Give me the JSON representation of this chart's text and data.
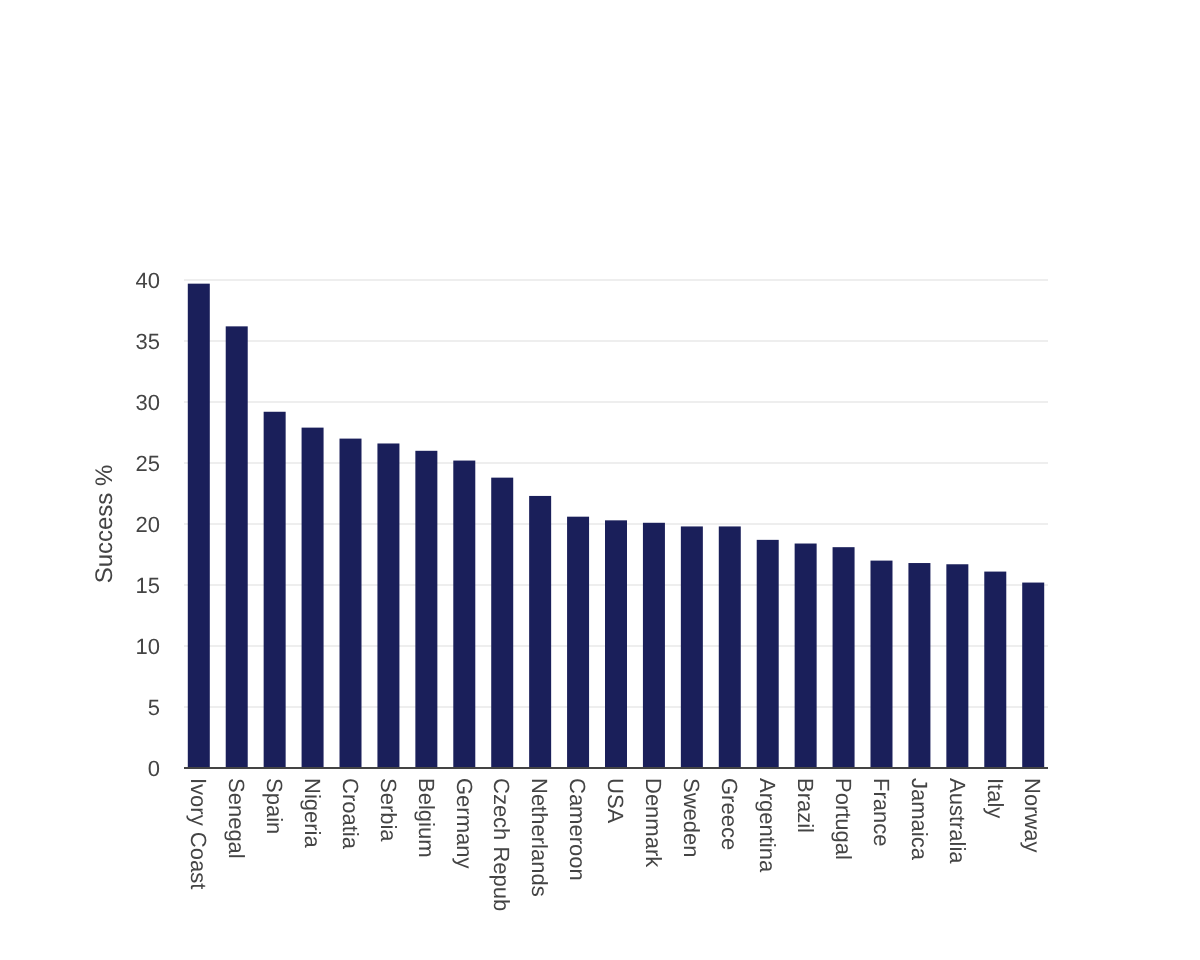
{
  "chart_data": {
    "type": "bar",
    "ylabel": "Success %",
    "categories": [
      "Ivory Coast",
      "Senegal",
      "Spain",
      "Nigeria",
      "Croatia",
      "Serbia",
      "Belgium",
      "Germany",
      "Czech Repub",
      "Netherlands",
      "Cameroon",
      "USA",
      "Denmark",
      "Sweden",
      "Greece",
      "Argentina",
      "Brazil",
      "Portugal",
      "France",
      "Jamaica",
      "Australia",
      "Italy",
      "Norway"
    ],
    "values": [
      39.7,
      36.2,
      29.2,
      27.9,
      27.0,
      26.6,
      26.0,
      25.2,
      23.8,
      22.3,
      20.6,
      20.3,
      20.1,
      19.8,
      19.8,
      18.7,
      18.4,
      18.1,
      17.0,
      16.8,
      16.7,
      16.1,
      15.2
    ],
    "color": "#1a1f5a",
    "ylim": [
      0,
      40
    ],
    "yticks": [
      0,
      5,
      10,
      15,
      20,
      25,
      30,
      35,
      40
    ],
    "grid": "y"
  }
}
